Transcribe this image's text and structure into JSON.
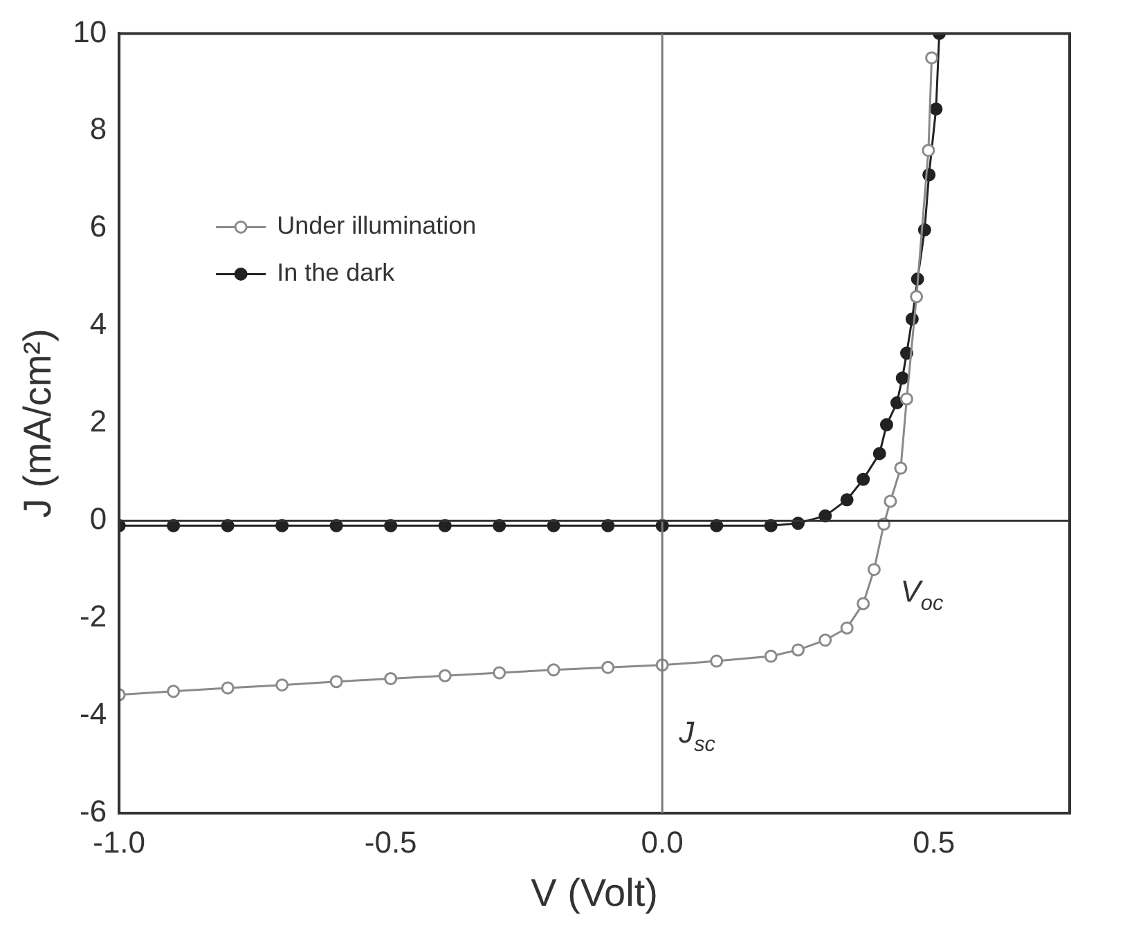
{
  "chart_data": {
    "type": "line",
    "xlabel": "V (Volt)",
    "ylabel": "J (mA/cm²)",
    "xlim": [
      -1.0,
      0.75
    ],
    "xticks": [
      {
        "value": -1,
        "label": "-1.0"
      },
      {
        "value": -0.5,
        "label": "-0.5"
      },
      {
        "value": 0,
        "label": "0.0"
      },
      {
        "value": 0.5,
        "label": "0.5"
      }
    ],
    "ylim": [
      -6,
      10
    ],
    "yticks": [
      -6,
      -4,
      -2,
      0,
      2,
      4,
      6,
      8,
      10
    ],
    "grid": false,
    "legend": "top left",
    "marker": "circle",
    "line_style": "solid",
    "series": [
      {
        "name": "Under illumination",
        "color": "#8a8a8a",
        "x": [
          -1.0,
          -0.9,
          -0.8,
          -0.7,
          -0.6,
          -0.5,
          -0.4,
          -0.3,
          -0.2,
          -0.1,
          0.0,
          0.1,
          0.2,
          0.25,
          0.3,
          0.34,
          0.37,
          0.39,
          0.408,
          0.42,
          0.439,
          0.45,
          0.468,
          0.49,
          0.496
        ],
        "values": [
          -3.57,
          -3.5,
          -3.43,
          -3.37,
          -3.3,
          -3.24,
          -3.18,
          -3.12,
          -3.06,
          -3.01,
          -2.96,
          -2.88,
          -2.78,
          -2.65,
          -2.45,
          -2.2,
          -1.7,
          -1.0,
          -0.07,
          0.4,
          1.08,
          2.5,
          4.6,
          7.6,
          9.5
        ]
      },
      {
        "name": "In the dark",
        "color": "#222222",
        "x": [
          -1.0,
          -0.9,
          -0.8,
          -0.7,
          -0.6,
          -0.5,
          -0.4,
          -0.3,
          -0.2,
          -0.1,
          0.0,
          0.1,
          0.2,
          0.25,
          0.3,
          0.34,
          0.37,
          0.4,
          0.413,
          0.432,
          0.442,
          0.45,
          0.46,
          0.47,
          0.483,
          0.491,
          0.504,
          0.51
        ],
        "values": [
          -0.1,
          -0.1,
          -0.1,
          -0.1,
          -0.1,
          -0.1,
          -0.1,
          -0.1,
          -0.1,
          -0.1,
          -0.1,
          -0.1,
          -0.1,
          -0.05,
          0.1,
          0.43,
          0.85,
          1.38,
          1.97,
          2.42,
          2.93,
          3.44,
          4.14,
          4.96,
          5.97,
          7.1,
          8.45,
          10
        ]
      }
    ],
    "ref_lines": [
      {
        "axis": "x",
        "value": 0,
        "color": "#7a7a7a"
      },
      {
        "axis": "y",
        "value": 0,
        "color": "#333333"
      }
    ],
    "annotations": [
      {
        "text": "V$_{oc}$",
        "x": 0.408,
        "y": -0.07
      },
      {
        "text": "J$_{sc}$",
        "x": 0,
        "y": -2.96
      }
    ]
  }
}
